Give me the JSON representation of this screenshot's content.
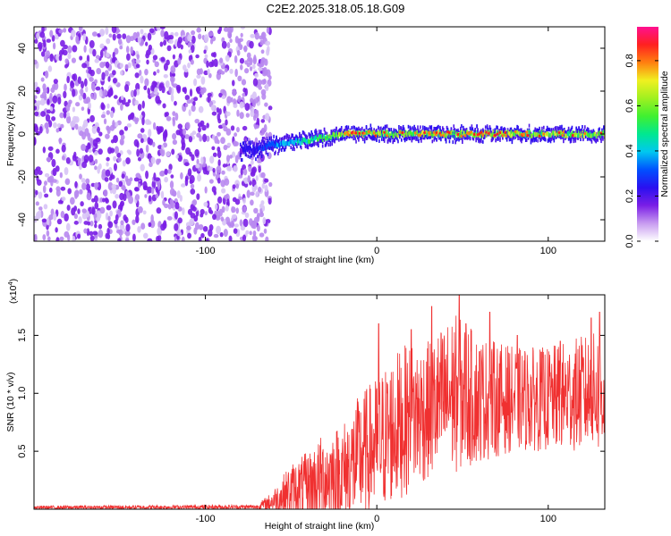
{
  "title": "C2E2.2025.318.05.18.G09",
  "chart_data": [
    {
      "type": "heatmap",
      "xlabel": "Height of straight line (km)",
      "ylabel": "Frequency (Hz)",
      "xlim": [
        -200,
        133
      ],
      "ylim": [
        -50,
        50
      ],
      "xticks": [
        -100,
        0,
        100
      ],
      "yticks": [
        -40,
        -20,
        0,
        20,
        40
      ],
      "colorbar": {
        "label": "Normalized spectral amplitude",
        "range": [
          0,
          0.95
        ],
        "ticks": [
          0.0,
          0.2,
          0.4,
          0.6,
          0.8
        ],
        "colormap": [
          "#ffffff",
          "#c89cf0",
          "#7a1ee6",
          "#2a10f0",
          "#0050ff",
          "#00c8f0",
          "#00e890",
          "#40f030",
          "#a0f020",
          "#f0f020",
          "#ff8010",
          "#ff2020",
          "#ff1090"
        ]
      },
      "features": {
        "noise_region_x": [
          -200,
          -70
        ],
        "tone_start_x": -80,
        "tone_frequency_hz": [
          {
            "x": -80,
            "f": -8
          },
          {
            "x": -60,
            "f": -5
          },
          {
            "x": -40,
            "f": -3
          },
          {
            "x": -20,
            "f": 0
          },
          {
            "x": 0,
            "f": 0
          },
          {
            "x": 20,
            "f": 0
          },
          {
            "x": 133,
            "f": 0
          }
        ]
      }
    },
    {
      "type": "line",
      "xlabel": "Height of straight line (km)",
      "ylabel": "SNR (10 * v/v)",
      "yscale_label": "(x10",
      "yscale_exponent": "4",
      "xlim": [
        -200,
        133
      ],
      "ylim": [
        0,
        1.85
      ],
      "xticks": [
        -100,
        0,
        100
      ],
      "yticks": [
        0.5,
        1.0,
        1.5
      ],
      "ytick_labels": [
        "0.5",
        "1.0",
        "1.5"
      ],
      "color": "#f03030",
      "envelope": [
        {
          "x": -200,
          "mean": 0.015,
          "amp": 0.015
        },
        {
          "x": -70,
          "mean": 0.02,
          "amp": 0.02
        },
        {
          "x": -62,
          "mean": 0.06,
          "amp": 0.08
        },
        {
          "x": -50,
          "mean": 0.15,
          "amp": 0.25
        },
        {
          "x": -40,
          "mean": 0.2,
          "amp": 0.3
        },
        {
          "x": -30,
          "mean": 0.28,
          "amp": 0.4
        },
        {
          "x": -20,
          "mean": 0.3,
          "amp": 0.45
        },
        {
          "x": -10,
          "mean": 0.45,
          "amp": 0.55
        },
        {
          "x": 0,
          "mean": 0.55,
          "amp": 0.6
        },
        {
          "x": 10,
          "mean": 0.7,
          "amp": 0.65
        },
        {
          "x": 20,
          "mean": 0.8,
          "amp": 0.65
        },
        {
          "x": 30,
          "mean": 0.85,
          "amp": 0.6
        },
        {
          "x": 45,
          "mean": 1.0,
          "amp": 0.7
        },
        {
          "x": 60,
          "mean": 0.95,
          "amp": 0.55
        },
        {
          "x": 80,
          "mean": 0.95,
          "amp": 0.45
        },
        {
          "x": 100,
          "mean": 0.95,
          "amp": 0.45
        },
        {
          "x": 120,
          "mean": 1.0,
          "amp": 0.5
        },
        {
          "x": 133,
          "mean": 1.0,
          "amp": 0.55
        }
      ],
      "peaks": [
        {
          "x": 1,
          "y": 1.6
        },
        {
          "x": 20,
          "y": 1.55
        },
        {
          "x": 32,
          "y": 1.75
        },
        {
          "x": 48,
          "y": 1.85
        },
        {
          "x": 52,
          "y": 1.6
        },
        {
          "x": 66,
          "y": 1.7
        },
        {
          "x": 82,
          "y": 1.5
        },
        {
          "x": 107,
          "y": 1.45
        },
        {
          "x": 125,
          "y": 1.65
        },
        {
          "x": 130,
          "y": 1.7
        }
      ]
    }
  ]
}
